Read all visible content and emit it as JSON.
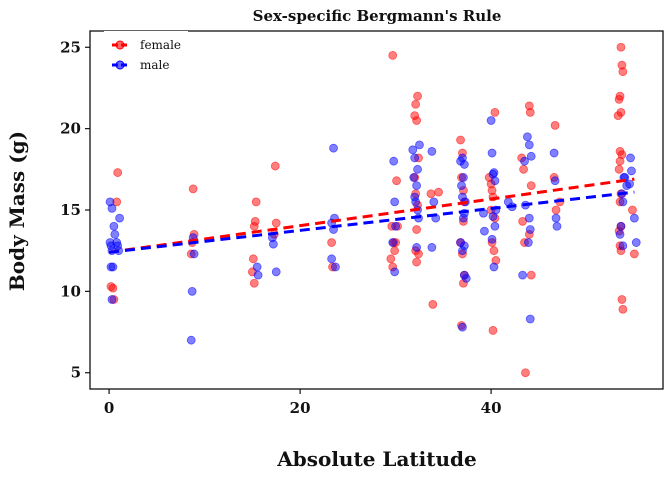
{
  "chart_data": {
    "type": "scatter",
    "title": "Sex-specific Bergmann's Rule",
    "xlabel": "Absolute Latitude",
    "ylabel": "Body Mass (g)",
    "xlim": [
      -2,
      58
    ],
    "ylim": [
      4,
      26
    ],
    "xticks": [
      0,
      20,
      40
    ],
    "yticks": [
      5,
      10,
      15,
      20,
      25
    ],
    "grid": false,
    "legend_position": "top-left",
    "series": [
      {
        "name": "female",
        "color": "#FF0000",
        "points": [
          [
            0.2,
            10.3
          ],
          [
            0.4,
            10.2
          ],
          [
            0.5,
            9.5
          ],
          [
            0.8,
            15.5
          ],
          [
            0.9,
            17.3
          ],
          [
            8.8,
            16.3
          ],
          [
            8.9,
            13.5
          ],
          [
            8.7,
            13.0
          ],
          [
            8.6,
            12.3
          ],
          [
            15.4,
            15.5
          ],
          [
            15.3,
            14.3
          ],
          [
            15.2,
            14.0
          ],
          [
            15.1,
            12.0
          ],
          [
            15.0,
            11.2
          ],
          [
            15.2,
            10.5
          ],
          [
            17.4,
            17.7
          ],
          [
            17.5,
            14.2
          ],
          [
            17.3,
            13.5
          ],
          [
            23.3,
            13.0
          ],
          [
            23.4,
            11.5
          ],
          [
            29.7,
            24.5
          ],
          [
            29.6,
            14.0
          ],
          [
            29.8,
            13.0
          ],
          [
            29.9,
            12.5
          ],
          [
            29.5,
            12.0
          ],
          [
            29.7,
            11.5
          ],
          [
            30.1,
            16.8
          ],
          [
            30.2,
            14.0
          ],
          [
            30.0,
            13.0
          ],
          [
            32.3,
            22.0
          ],
          [
            32.1,
            21.5
          ],
          [
            32.0,
            20.8
          ],
          [
            32.2,
            20.5
          ],
          [
            32.4,
            18.2
          ],
          [
            32.0,
            17.0
          ],
          [
            32.1,
            16.0
          ],
          [
            32.3,
            15.3
          ],
          [
            32.2,
            13.8
          ],
          [
            32.1,
            12.5
          ],
          [
            32.4,
            12.3
          ],
          [
            32.2,
            11.8
          ],
          [
            33.9,
            9.2
          ],
          [
            33.7,
            16.0
          ],
          [
            34.5,
            16.1
          ],
          [
            36.8,
            19.3
          ],
          [
            37.0,
            18.5
          ],
          [
            36.9,
            17.0
          ],
          [
            37.1,
            16.2
          ],
          [
            37.2,
            15.5
          ],
          [
            37.1,
            14.3
          ],
          [
            36.8,
            13.0
          ],
          [
            37.0,
            12.3
          ],
          [
            37.2,
            11.0
          ],
          [
            36.9,
            7.9
          ],
          [
            37.1,
            10.5
          ],
          [
            39.8,
            17.0
          ],
          [
            40.0,
            16.6
          ],
          [
            40.2,
            15.8
          ],
          [
            40.4,
            14.5
          ],
          [
            40.1,
            13.0
          ],
          [
            40.3,
            12.5
          ],
          [
            40.5,
            11.9
          ],
          [
            40.1,
            16.2
          ],
          [
            40.4,
            21.0
          ],
          [
            40.2,
            7.6
          ],
          [
            40.0,
            15.0
          ],
          [
            43.2,
            18.2
          ],
          [
            43.4,
            17.5
          ],
          [
            43.3,
            14.3
          ],
          [
            43.5,
            13.0
          ],
          [
            43.6,
            5.0
          ],
          [
            44.0,
            21.4
          ],
          [
            44.1,
            21.0
          ],
          [
            44.2,
            16.5
          ],
          [
            44.0,
            13.5
          ],
          [
            44.2,
            11.0
          ],
          [
            46.7,
            20.2
          ],
          [
            46.6,
            17.0
          ],
          [
            47.2,
            15.5
          ],
          [
            46.8,
            15.0
          ],
          [
            53.6,
            25.0
          ],
          [
            53.7,
            23.9
          ],
          [
            53.8,
            23.5
          ],
          [
            53.5,
            22.0
          ],
          [
            53.4,
            21.8
          ],
          [
            53.6,
            21.0
          ],
          [
            53.3,
            20.8
          ],
          [
            53.5,
            18.6
          ],
          [
            53.7,
            18.4
          ],
          [
            53.5,
            18.0
          ],
          [
            53.4,
            17.5
          ],
          [
            53.6,
            16.0
          ],
          [
            53.5,
            15.5
          ],
          [
            53.6,
            14.0
          ],
          [
            53.4,
            13.7
          ],
          [
            53.5,
            12.8
          ],
          [
            53.6,
            12.5
          ],
          [
            53.7,
            9.5
          ],
          [
            53.8,
            8.9
          ],
          [
            54.8,
            15.0
          ],
          [
            55.0,
            12.3
          ]
        ]
      },
      {
        "name": "male",
        "color": "#0000FF",
        "points": [
          [
            0.1,
            13.0
          ],
          [
            0.2,
            12.8
          ],
          [
            0.3,
            12.5
          ],
          [
            0.2,
            11.5
          ],
          [
            0.4,
            11.5
          ],
          [
            0.3,
            9.5
          ],
          [
            0.1,
            15.5
          ],
          [
            0.3,
            15.1
          ],
          [
            0.5,
            14.0
          ],
          [
            0.6,
            13.5
          ],
          [
            0.8,
            13.0
          ],
          [
            0.9,
            12.8
          ],
          [
            1.0,
            12.5
          ],
          [
            1.1,
            14.5
          ],
          [
            8.8,
            13.3
          ],
          [
            8.9,
            12.3
          ],
          [
            8.7,
            10.0
          ],
          [
            8.6,
            7.0
          ],
          [
            15.5,
            11.5
          ],
          [
            15.6,
            11.0
          ],
          [
            17.1,
            13.3
          ],
          [
            17.2,
            12.9
          ],
          [
            17.5,
            11.2
          ],
          [
            23.5,
            18.8
          ],
          [
            23.6,
            14.5
          ],
          [
            23.3,
            14.2
          ],
          [
            23.5,
            13.8
          ],
          [
            23.3,
            12.0
          ],
          [
            23.7,
            11.5
          ],
          [
            29.8,
            18.0
          ],
          [
            29.9,
            15.5
          ],
          [
            30.0,
            14.0
          ],
          [
            29.7,
            13.0
          ],
          [
            29.9,
            11.2
          ],
          [
            31.8,
            18.7
          ],
          [
            32.0,
            18.2
          ],
          [
            32.3,
            17.5
          ],
          [
            31.9,
            17.0
          ],
          [
            32.2,
            16.5
          ],
          [
            32.0,
            15.8
          ],
          [
            32.1,
            15.5
          ],
          [
            32.3,
            15.0
          ],
          [
            32.4,
            14.5
          ],
          [
            32.2,
            12.7
          ],
          [
            32.5,
            19.0
          ],
          [
            33.8,
            18.6
          ],
          [
            34.0,
            15.5
          ],
          [
            34.2,
            14.5
          ],
          [
            33.8,
            12.7
          ],
          [
            36.8,
            18.0
          ],
          [
            37.0,
            18.2
          ],
          [
            37.2,
            17.8
          ],
          [
            37.1,
            17.0
          ],
          [
            36.9,
            16.5
          ],
          [
            37.0,
            15.8
          ],
          [
            37.3,
            15.5
          ],
          [
            37.2,
            14.8
          ],
          [
            37.1,
            14.5
          ],
          [
            36.8,
            13.0
          ],
          [
            37.0,
            12.5
          ],
          [
            37.2,
            11.0
          ],
          [
            37.4,
            10.8
          ],
          [
            37.0,
            7.8
          ],
          [
            37.2,
            12.8
          ],
          [
            39.2,
            14.8
          ],
          [
            39.3,
            13.7
          ],
          [
            40.0,
            20.5
          ],
          [
            40.1,
            18.5
          ],
          [
            40.3,
            17.3
          ],
          [
            40.2,
            17.2
          ],
          [
            40.4,
            16.8
          ],
          [
            40.5,
            15.0
          ],
          [
            40.2,
            14.6
          ],
          [
            40.4,
            14.0
          ],
          [
            40.1,
            13.2
          ],
          [
            40.3,
            11.5
          ],
          [
            41.8,
            15.5
          ],
          [
            42.2,
            15.2
          ],
          [
            43.5,
            18.0
          ],
          [
            43.8,
            19.5
          ],
          [
            44.0,
            19.0
          ],
          [
            44.2,
            18.3
          ],
          [
            43.6,
            15.3
          ],
          [
            44.0,
            14.5
          ],
          [
            44.1,
            13.8
          ],
          [
            43.9,
            13.0
          ],
          [
            44.1,
            8.3
          ],
          [
            43.3,
            11.0
          ],
          [
            46.7,
            16.8
          ],
          [
            46.8,
            14.5
          ],
          [
            46.9,
            14.0
          ],
          [
            46.6,
            18.5
          ],
          [
            53.7,
            16.0
          ],
          [
            53.8,
            15.5
          ],
          [
            53.9,
            17.0
          ],
          [
            54.0,
            17.0
          ],
          [
            54.2,
            16.5
          ],
          [
            54.5,
            16.6
          ],
          [
            55.0,
            14.5
          ],
          [
            55.2,
            13.0
          ],
          [
            54.6,
            18.2
          ],
          [
            53.6,
            14.0
          ],
          [
            53.5,
            13.5
          ],
          [
            53.8,
            12.8
          ],
          [
            54.7,
            17.4
          ]
        ]
      }
    ],
    "trend_lines": [
      {
        "series": "female",
        "color": "#FF0000",
        "x": [
          0,
          55
        ],
        "y": [
          12.4,
          16.9
        ]
      },
      {
        "series": "male",
        "color": "#0000FF",
        "x": [
          0,
          55
        ],
        "y": [
          12.4,
          16.1
        ]
      }
    ]
  }
}
